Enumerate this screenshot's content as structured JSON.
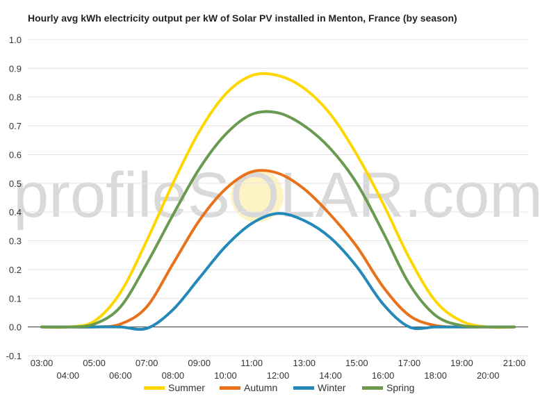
{
  "chart_data": {
    "type": "line",
    "title": "Hourly avg kWh electricity output per kW of Solar PV installed in Menton, France (by season)",
    "xlabel": "",
    "ylabel": "",
    "ylim": [
      -0.1,
      1.0
    ],
    "yticks": [
      "-0.1",
      "0.0",
      "0.1",
      "0.2",
      "0.3",
      "0.4",
      "0.5",
      "0.6",
      "0.7",
      "0.8",
      "0.9",
      "1.0"
    ],
    "x": [
      "03:00",
      "04:00",
      "05:00",
      "06:00",
      "07:00",
      "08:00",
      "09:00",
      "10:00",
      "11:00",
      "12:00",
      "13:00",
      "14:00",
      "15:00",
      "16:00",
      "17:00",
      "18:00",
      "19:00",
      "20:00",
      "21:00"
    ],
    "grid": true,
    "legend": "bottom",
    "watermark": "profileSOLAR.com",
    "series": [
      {
        "name": "Summer",
        "color": "#FFD700",
        "values": [
          0.0,
          0.0,
          0.02,
          0.12,
          0.3,
          0.5,
          0.68,
          0.81,
          0.875,
          0.875,
          0.83,
          0.74,
          0.6,
          0.43,
          0.24,
          0.09,
          0.02,
          0.0,
          0.0
        ]
      },
      {
        "name": "Autumn",
        "color": "#E8711A",
        "values": [
          0.0,
          0.0,
          0.0,
          0.01,
          0.07,
          0.22,
          0.37,
          0.48,
          0.54,
          0.535,
          0.48,
          0.39,
          0.28,
          0.14,
          0.04,
          0.005,
          0.0,
          0.0,
          0.0
        ]
      },
      {
        "name": "Winter",
        "color": "#2389B8",
        "values": [
          0.0,
          0.0,
          0.0,
          0.0,
          -0.005,
          0.06,
          0.17,
          0.28,
          0.36,
          0.395,
          0.37,
          0.31,
          0.21,
          0.08,
          0.0,
          0.0,
          0.0,
          0.0,
          0.0
        ]
      },
      {
        "name": "Spring",
        "color": "#6A9A50",
        "values": [
          0.0,
          0.0,
          0.01,
          0.07,
          0.22,
          0.39,
          0.55,
          0.67,
          0.74,
          0.745,
          0.7,
          0.62,
          0.5,
          0.33,
          0.15,
          0.04,
          0.005,
          0.0,
          0.0
        ]
      }
    ]
  }
}
